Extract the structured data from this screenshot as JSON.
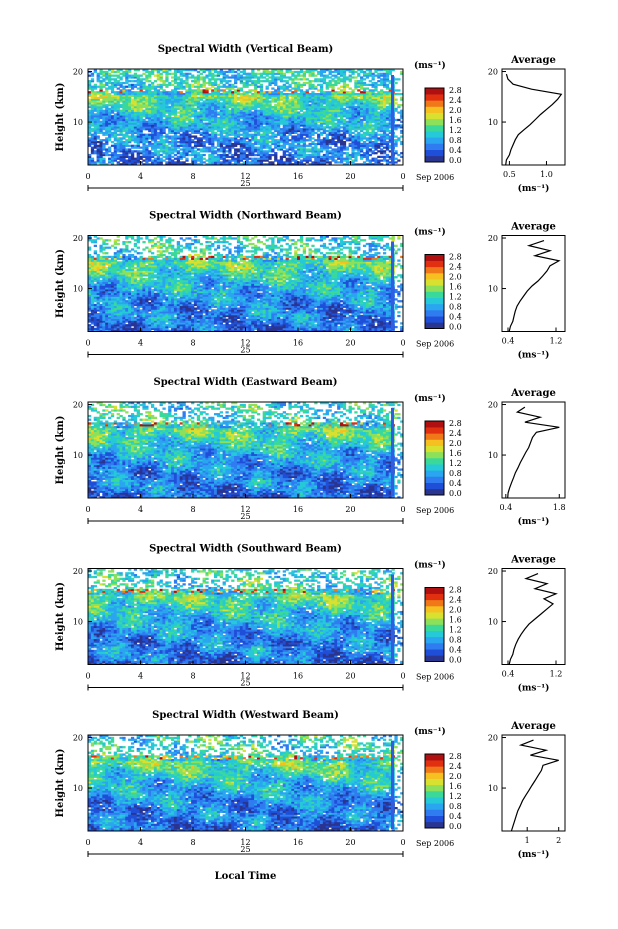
{
  "figure": {
    "xlabel": "Local Time",
    "date_label": "Sep 2006",
    "day_label": "25",
    "ylabel": "Height (km)",
    "colorbar_unit": "(ms⁻¹)",
    "average_title": "Average",
    "average_xlabel": "(ms⁻¹)"
  },
  "colorbar": {
    "ticks": [
      "2.8",
      "2.4",
      "2.0",
      "1.6",
      "1.2",
      "0.8",
      "0.4",
      "0.0"
    ],
    "colors": [
      "#2a3590",
      "#1f4fd8",
      "#2f7cf0",
      "#2aa5f0",
      "#25c9d8",
      "#3ad99a",
      "#8ce05a",
      "#d8e030",
      "#f5c020",
      "#f07818",
      "#e03010",
      "#b01010"
    ]
  },
  "chart_data": [
    {
      "type": "heatmap",
      "title": "Spectral Width (Vertical Beam)",
      "x_ticks": [
        "0",
        "4",
        "8",
        "12",
        "16",
        "20",
        "0"
      ],
      "y_ticks": [
        "20",
        "10"
      ],
      "xlim": [
        0,
        24
      ],
      "ylim": [
        1.5,
        20.5
      ],
      "value_range": [
        0.0,
        3.0
      ],
      "average": {
        "x_ticks": [
          "0.5",
          "1.0"
        ],
        "xlim": [
          0.4,
          1.25
        ],
        "profile": [
          [
            1.5,
            0.45
          ],
          [
            2.5,
            0.46
          ],
          [
            3.5,
            0.5
          ],
          [
            4.5,
            0.52
          ],
          [
            5.5,
            0.55
          ],
          [
            6.5,
            0.58
          ],
          [
            7.5,
            0.62
          ],
          [
            8.5,
            0.7
          ],
          [
            9.5,
            0.78
          ],
          [
            10.5,
            0.85
          ],
          [
            11.5,
            0.92
          ],
          [
            12.5,
            1.0
          ],
          [
            13.5,
            1.08
          ],
          [
            14.5,
            1.15
          ],
          [
            15.5,
            1.2
          ],
          [
            16.5,
            0.8
          ],
          [
            17.5,
            0.55
          ],
          [
            18.5,
            0.48
          ],
          [
            19.5,
            0.46
          ]
        ]
      }
    },
    {
      "type": "heatmap",
      "title": "Spectral Width (Northward Beam)",
      "x_ticks": [
        "0",
        "4",
        "8",
        "12",
        "16",
        "20",
        "0"
      ],
      "y_ticks": [
        "20",
        "10"
      ],
      "xlim": [
        0,
        24
      ],
      "ylim": [
        1.5,
        20.5
      ],
      "value_range": [
        0.0,
        3.0
      ],
      "average": {
        "x_ticks": [
          "0.4",
          "1.2"
        ],
        "xlim": [
          0.3,
          1.35
        ],
        "profile": [
          [
            1.5,
            0.42
          ],
          [
            2.5,
            0.44
          ],
          [
            3.5,
            0.48
          ],
          [
            4.5,
            0.5
          ],
          [
            5.5,
            0.52
          ],
          [
            6.5,
            0.55
          ],
          [
            7.5,
            0.6
          ],
          [
            8.5,
            0.66
          ],
          [
            9.5,
            0.72
          ],
          [
            10.5,
            0.8
          ],
          [
            11.5,
            0.9
          ],
          [
            12.5,
            0.98
          ],
          [
            13.5,
            1.05
          ],
          [
            14.5,
            1.1
          ],
          [
            15.5,
            1.25
          ],
          [
            16.5,
            0.85
          ],
          [
            17.5,
            1.1
          ],
          [
            18.5,
            0.75
          ],
          [
            19.5,
            1.0
          ]
        ]
      }
    },
    {
      "type": "heatmap",
      "title": "Spectral Width (Eastward Beam)",
      "x_ticks": [
        "0",
        "4",
        "8",
        "12",
        "16",
        "20",
        "0"
      ],
      "y_ticks": [
        "20",
        "10"
      ],
      "xlim": [
        0,
        24
      ],
      "ylim": [
        1.5,
        20.5
      ],
      "value_range": [
        0.0,
        3.0
      ],
      "average": {
        "x_ticks": [
          "0.4",
          "1.8"
        ],
        "xlim": [
          0.3,
          1.95
        ],
        "profile": [
          [
            1.5,
            0.45
          ],
          [
            2.5,
            0.46
          ],
          [
            3.5,
            0.5
          ],
          [
            4.5,
            0.55
          ],
          [
            5.5,
            0.6
          ],
          [
            6.5,
            0.65
          ],
          [
            7.5,
            0.72
          ],
          [
            8.5,
            0.78
          ],
          [
            9.5,
            0.85
          ],
          [
            10.5,
            0.92
          ],
          [
            11.5,
            1.0
          ],
          [
            12.5,
            1.05
          ],
          [
            13.5,
            1.1
          ],
          [
            14.5,
            1.2
          ],
          [
            15.5,
            1.8
          ],
          [
            16.5,
            0.9
          ],
          [
            17.5,
            1.3
          ],
          [
            18.5,
            0.7
          ],
          [
            19.5,
            0.9
          ]
        ]
      }
    },
    {
      "type": "heatmap",
      "title": "Spectral Width (Southward Beam)",
      "x_ticks": [
        "0",
        "4",
        "8",
        "12",
        "16",
        "20",
        "0"
      ],
      "y_ticks": [
        "20",
        "10"
      ],
      "xlim": [
        0,
        24
      ],
      "ylim": [
        1.5,
        20.5
      ],
      "value_range": [
        0.0,
        3.0
      ],
      "average": {
        "x_ticks": [
          "0.4",
          "1.2"
        ],
        "xlim": [
          0.3,
          1.35
        ],
        "profile": [
          [
            1.5,
            0.42
          ],
          [
            2.5,
            0.44
          ],
          [
            3.5,
            0.48
          ],
          [
            4.5,
            0.5
          ],
          [
            5.5,
            0.53
          ],
          [
            6.5,
            0.57
          ],
          [
            7.5,
            0.62
          ],
          [
            8.5,
            0.68
          ],
          [
            9.5,
            0.75
          ],
          [
            10.5,
            0.85
          ],
          [
            11.5,
            0.95
          ],
          [
            12.5,
            1.05
          ],
          [
            13.5,
            1.15
          ],
          [
            14.5,
            1.0
          ],
          [
            15.5,
            1.2
          ],
          [
            16.5,
            0.85
          ],
          [
            17.5,
            1.05
          ],
          [
            18.5,
            0.7
          ],
          [
            19.5,
            0.9
          ]
        ]
      }
    },
    {
      "type": "heatmap",
      "title": "Spectral Width (Westward Beam)",
      "x_ticks": [
        "0",
        "4",
        "8",
        "12",
        "16",
        "20",
        "0"
      ],
      "y_ticks": [
        "20",
        "10"
      ],
      "xlim": [
        0,
        24
      ],
      "ylim": [
        1.5,
        20.5
      ],
      "value_range": [
        0.0,
        3.0
      ],
      "average": {
        "x_ticks": [
          "1",
          "2"
        ],
        "xlim": [
          0.2,
          2.2
        ],
        "profile": [
          [
            1.5,
            0.5
          ],
          [
            2.5,
            0.55
          ],
          [
            3.5,
            0.6
          ],
          [
            4.5,
            0.65
          ],
          [
            5.5,
            0.7
          ],
          [
            6.5,
            0.78
          ],
          [
            7.5,
            0.85
          ],
          [
            8.5,
            0.95
          ],
          [
            9.5,
            1.05
          ],
          [
            10.5,
            1.15
          ],
          [
            11.5,
            1.25
          ],
          [
            12.5,
            1.35
          ],
          [
            13.5,
            1.45
          ],
          [
            14.5,
            1.5
          ],
          [
            15.5,
            2.0
          ],
          [
            16.5,
            1.1
          ],
          [
            17.5,
            1.6
          ],
          [
            18.5,
            0.8
          ],
          [
            19.5,
            1.2
          ]
        ]
      }
    }
  ]
}
